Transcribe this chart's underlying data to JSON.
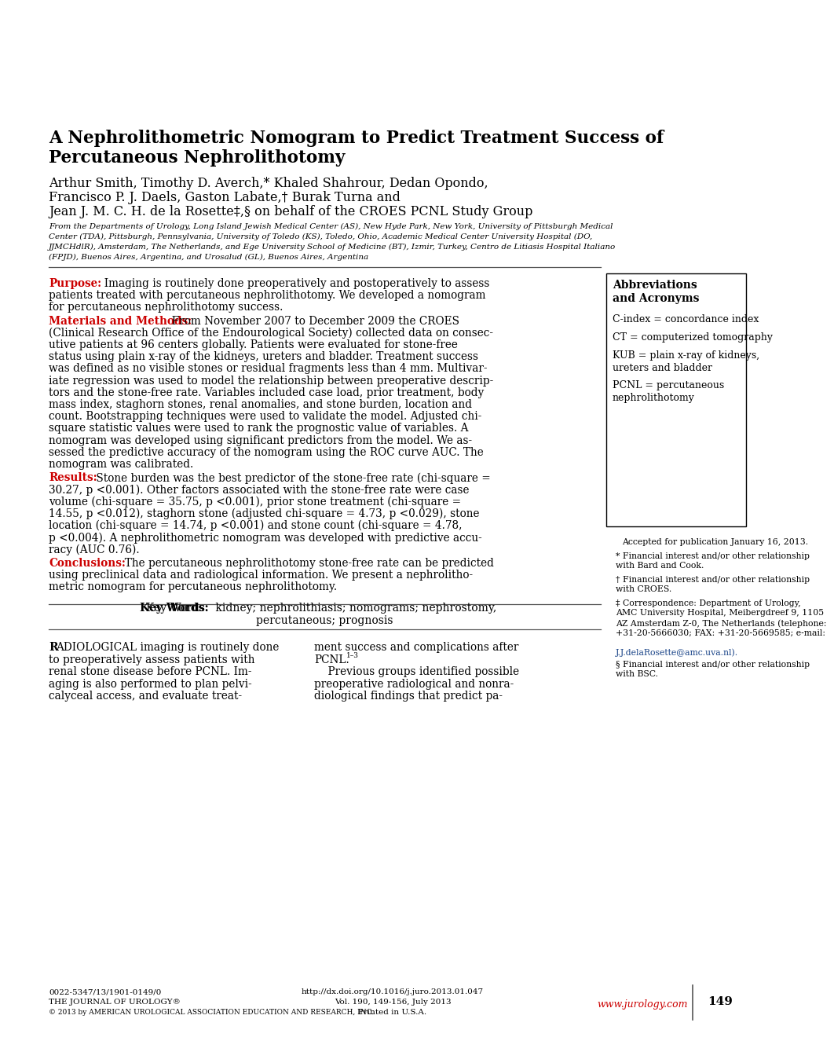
{
  "title_line1": "A Nephrolithometric Nomogram to Predict Treatment Success of",
  "title_line2": "Percutaneous Nephrolithotomy",
  "authors_line1": "Arthur Smith, Timothy D. Averch,* Khaled Shahrour, Dedan Opondo,",
  "authors_line2": "Francisco P. J. Daels, Gaston Labate,† Burak Turna and",
  "authors_line3": "Jean J. M. C. H. de la Rosette‡,§ on behalf of the CROES PCNL Study Group",
  "affil1": "From the Departments of Urology, Long Island Jewish Medical Center (AS), New Hyde Park, New York, University of Pittsburgh Medical",
  "affil2": "Center (TDA), Pittsburgh, Pennsylvania, University of Toledo (KS), Toledo, Ohio, Academic Medical Center University Hospital (DO,",
  "affil3": "JJMCHdlR), Amsterdam, The Netherlands, and Ege University School of Medicine (BT), Izmir, Turkey, Centro de Litiasis Hospital Italiano",
  "affil4": "(FPJD), Buenos Aires, Argentina, and Urosalud (GL), Buenos Aires, Argentina",
  "abbrev_title": "Abbreviations\nand Acronyms",
  "abbrev_items": [
    "C-index = concordance index",
    "CT = computerized tomography",
    "KUB = plain x-ray of kidneys,\nureters and bladder",
    "PCNL = percutaneous\nnephrolithotomy"
  ],
  "fn_accepted": "Accepted for publication January 16, 2013.",
  "fn_star": "* Financial interest and/or other relationship\nwith Bard and Cook.",
  "fn_dagger": "† Financial interest and/or other relationship\nwith CROES.",
  "fn_ddagger1": "‡ Correspondence: Department of Urology,\nAMC University Hospital, Meibergdreef 9, 1105\nAZ Amsterdam Z-0, The Netherlands (telephone:\n+31-20-5666030; FAX: +31-20-5669585; e-mail:",
  "fn_email": "J.J.delaRosette@amc.uva.nl).",
  "fn_section": "§ Financial interest and/or other relationship\nwith BSC.",
  "footer_left1": "0022-5347/13/1901-0149/0",
  "footer_left2": "THE JOURNAL OF UROLOGY®",
  "footer_left3": "© 2013 by AMERICAN UROLOGICAL ASSOCIATION EDUCATION AND RESEARCH, INC.",
  "footer_center1": "http://dx.doi.org/10.1016/j.juro.2013.01.047",
  "footer_center2": "Vol. 190, 149-156, July 2013",
  "footer_center3": "Printed in U.S.A.",
  "footer_website": "www.jurology.com",
  "footer_page": "149",
  "bg_color": "#ffffff",
  "text_color": "#000000",
  "red_color": "#cc0000",
  "blue_color": "#1a4488"
}
